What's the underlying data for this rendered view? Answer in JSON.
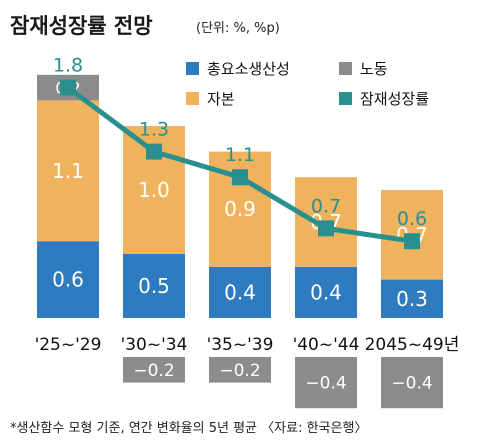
{
  "chart_data": {
    "type": "bar",
    "title": "잠재성장률 전망",
    "unit_note": "(단위: %, %p)",
    "categories": [
      "'25~'29",
      "'30~'34",
      "'35~'39",
      "'40~'44",
      "2045~49년"
    ],
    "series": [
      {
        "name": "총요소생산성",
        "color": "#2e7bbf",
        "values": [
          0.6,
          0.5,
          0.4,
          0.4,
          0.3
        ],
        "labels": [
          "0.6",
          "0.5",
          "0.4",
          "0.4",
          "0.3"
        ]
      },
      {
        "name": "자본",
        "color": "#f0b35d",
        "values": [
          1.1,
          1.0,
          0.9,
          0.7,
          0.7
        ],
        "labels": [
          "1.1",
          "1.0",
          "0.9",
          "0.7",
          "0.7"
        ]
      },
      {
        "name": "노동",
        "color": "#8c8c8c",
        "values": [
          0.2,
          -0.2,
          -0.2,
          -0.4,
          -0.4
        ],
        "labels": [
          "0.2",
          "−0.2",
          "−0.2",
          "−0.4",
          "−0.4"
        ]
      }
    ],
    "line": {
      "name": "잠재성장률",
      "color": "#2a8f8f",
      "values": [
        1.8,
        1.3,
        1.1,
        0.7,
        0.6
      ],
      "labels": [
        "1.8",
        "1.3",
        "1.1",
        "0.7",
        "0.6"
      ]
    },
    "stacked": true,
    "legend_position": "top-right",
    "footnote": "*생산함수 모형 기준, 연간 변화율의 5년 평균 〈자료: 한국은행〉"
  }
}
